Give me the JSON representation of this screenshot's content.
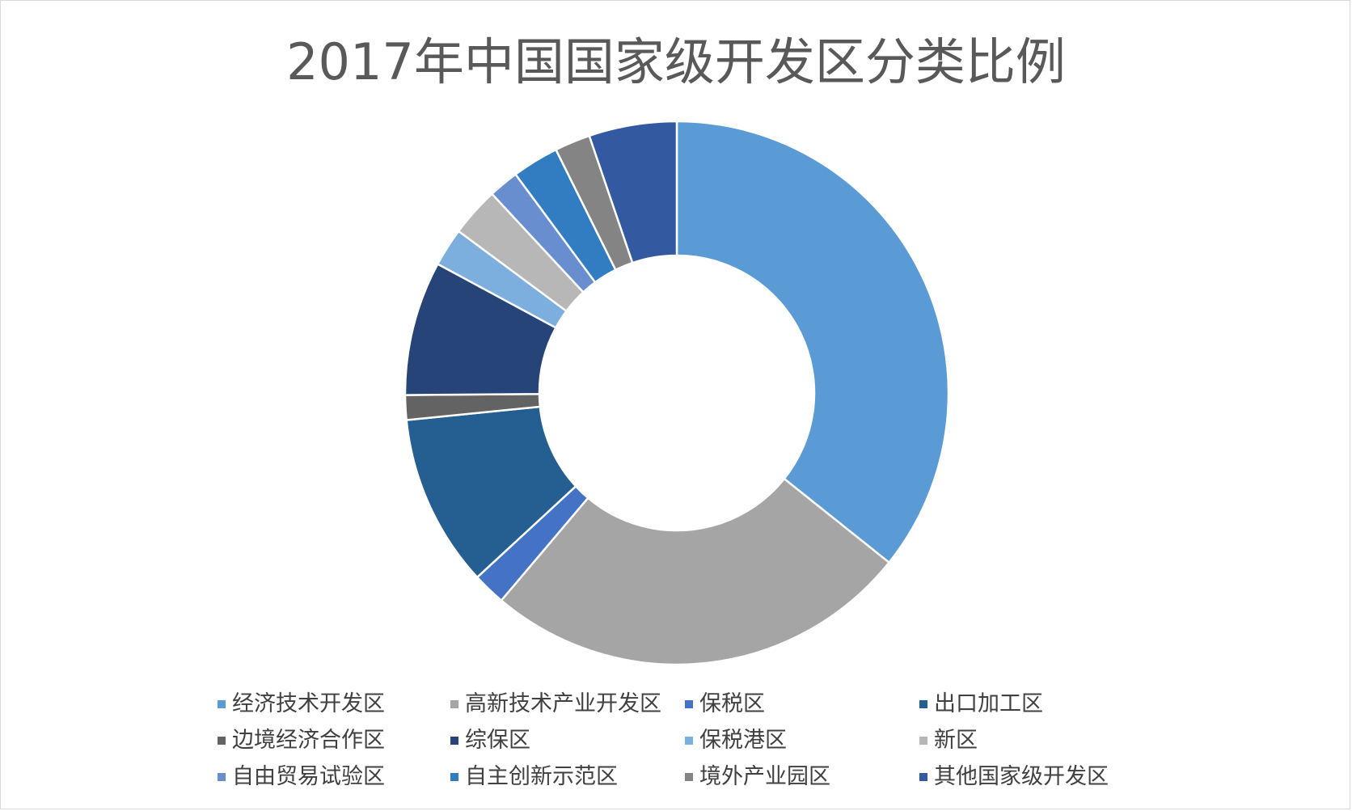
{
  "chart_data": {
    "type": "donut",
    "title": "2017年中国国家级开发区分类比例",
    "categories": [
      "经济技术开发区",
      "高新技术产业开发区",
      "保税区",
      "出口加工区",
      "边境经济合作区",
      "综保区",
      "保税港区",
      "新区",
      "自由贸易试验区",
      "自主创新示范区",
      "境外产业园区",
      "其他国家级开发区"
    ],
    "values": [
      219,
      156,
      12,
      63,
      9,
      49,
      14,
      18,
      11,
      17,
      13,
      32
    ],
    "colors": [
      "#5b9bd5",
      "#a5a5a5",
      "#4472c4",
      "#255e91",
      "#636363",
      "#264478",
      "#7cafdd",
      "#b7b7b7",
      "#698ed0",
      "#327dc2",
      "#848484",
      "#335aa1"
    ],
    "legend_position": "bottom",
    "start_angle_deg": 0,
    "direction": "clockwise"
  }
}
